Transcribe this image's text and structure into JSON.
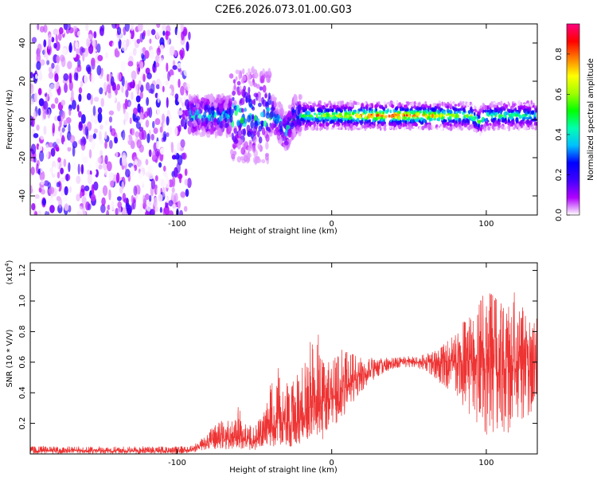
{
  "page_title": "C2E6.2026.073.01.00.G03",
  "chart_data": [
    {
      "type": "heatmap",
      "xlabel": "Height of straight line (km)",
      "ylabel": "Frequency (Hz)",
      "xlim": [
        -195,
        133
      ],
      "ylim": [
        -50,
        50
      ],
      "xticks": [
        -100,
        0,
        100
      ],
      "yticks": [
        -40,
        -20,
        0,
        20,
        40
      ],
      "colorbar": {
        "label": "Normalized spectral amplitude",
        "range": [
          0,
          0.95
        ],
        "ticks": [
          "0.0",
          "0.2",
          "0.4",
          "0.6",
          "0.8"
        ],
        "tick_values": [
          0,
          0.2,
          0.4,
          0.6,
          0.8
        ],
        "colors": [
          "#ffffff",
          "#b000ff",
          "#4000ff",
          "#0000ff",
          "#00c0ff",
          "#00ffb0",
          "#00ff00",
          "#a0ff00",
          "#ffff00",
          "#ff8000",
          "#ff0000",
          "#ff0080"
        ]
      },
      "features": [
        {
          "x_range": [
            -195,
            -92
          ],
          "frequency_range": [
            -50,
            50
          ],
          "amplitude": "0.0-0.2 (broadband noise)"
        },
        {
          "x_range": [
            -92,
            -20
          ],
          "frequency_range": [
            -12,
            22
          ],
          "amplitude": "0.1-0.4"
        },
        {
          "x": -30,
          "frequency": -10,
          "amplitude": "0.3 (dip)"
        },
        {
          "x_range": [
            -20,
            133
          ],
          "frequency": 2,
          "amplitude": "0.4-0.95 (narrow band)"
        },
        {
          "x": 95,
          "frequency": -2,
          "amplitude": "0.4 (dip)"
        }
      ]
    },
    {
      "type": "line",
      "xlabel": "Height of straight line (km)",
      "ylabel": "SNR (10 * V/V)",
      "multiplier_label": "(x10",
      "multiplier_exponent": "4",
      "multiplier_close": ")",
      "xlim": [
        -195,
        133
      ],
      "ylim": [
        0,
        1.25
      ],
      "xticks": [
        -100,
        0,
        100
      ],
      "yticks": [
        0.2,
        0.4,
        0.6,
        0.8,
        1.0,
        1.2
      ],
      "ytick_labels": [
        "0.2",
        "0.4",
        "0.6",
        "0.8",
        "1.0",
        "1.2"
      ],
      "color": "#ee3333",
      "series": [
        {
          "x": [
            -195,
            -180,
            -160,
            -140,
            -120,
            -100,
            -90,
            -85,
            -80,
            -75,
            -70,
            -65,
            -60,
            -55,
            -50,
            -45,
            -40,
            -35,
            -30,
            -25,
            -20,
            -15,
            -10,
            -5,
            0,
            5,
            10,
            20,
            30,
            40,
            50,
            60,
            70,
            80,
            90,
            100,
            110,
            120,
            133
          ],
          "baseline": [
            0.02,
            0.02,
            0.02,
            0.02,
            0.02,
            0.02,
            0.03,
            0.05,
            0.07,
            0.09,
            0.1,
            0.1,
            0.12,
            0.08,
            0.08,
            0.1,
            0.14,
            0.22,
            0.2,
            0.18,
            0.22,
            0.3,
            0.34,
            0.32,
            0.36,
            0.4,
            0.45,
            0.52,
            0.57,
            0.59,
            0.6,
            0.6,
            0.6,
            0.62,
            0.6,
            0.58,
            0.55,
            0.58,
            0.6
          ],
          "upper": [
            0.05,
            0.05,
            0.05,
            0.05,
            0.05,
            0.05,
            0.06,
            0.1,
            0.14,
            0.2,
            0.22,
            0.22,
            0.32,
            0.18,
            0.2,
            0.25,
            0.45,
            0.58,
            0.5,
            0.48,
            0.55,
            0.75,
            0.85,
            0.65,
            0.6,
            0.68,
            0.7,
            0.64,
            0.63,
            0.63,
            0.64,
            0.65,
            0.7,
            0.8,
            0.95,
            1.1,
            1.0,
            1.08,
            0.9
          ],
          "lower": [
            0.0,
            0.0,
            0.0,
            0.0,
            0.0,
            0.0,
            0.01,
            0.02,
            0.03,
            0.03,
            0.03,
            0.03,
            0.04,
            0.02,
            0.02,
            0.03,
            0.04,
            0.05,
            0.04,
            0.05,
            0.06,
            0.1,
            0.1,
            0.08,
            0.18,
            0.2,
            0.28,
            0.4,
            0.5,
            0.55,
            0.56,
            0.55,
            0.45,
            0.4,
            0.2,
            0.12,
            0.1,
            0.15,
            0.3
          ]
        }
      ]
    }
  ]
}
